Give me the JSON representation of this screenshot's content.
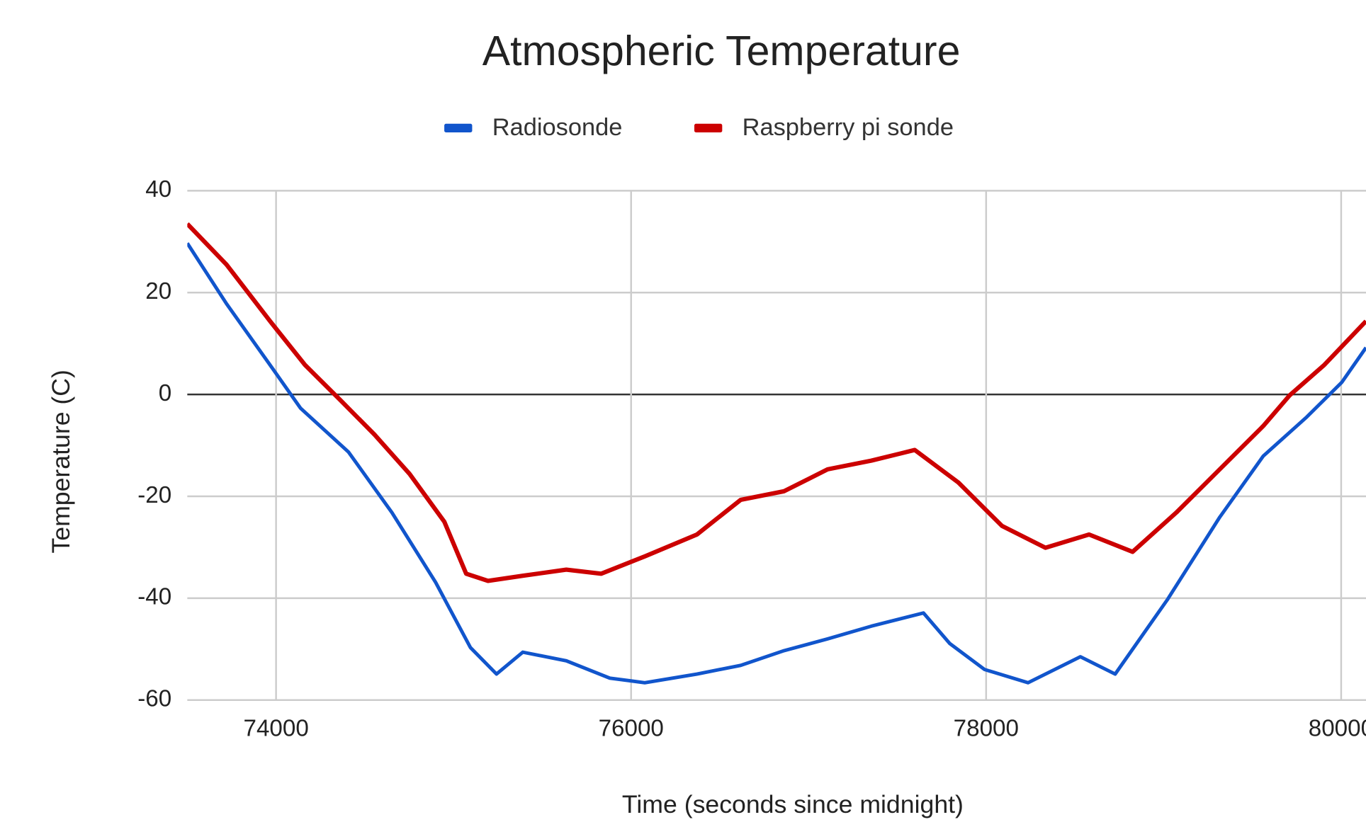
{
  "chart_data": {
    "type": "line",
    "title": "Atmospheric Temperature",
    "xlabel": "Time (seconds since midnight)",
    "ylabel": "Temperature (C)",
    "xlim": [
      73500,
      80140
    ],
    "ylim": [
      -60,
      40
    ],
    "xticks": [
      74000,
      76000,
      78000,
      80000
    ],
    "yticks": [
      -60,
      -40,
      -20,
      0,
      20,
      40
    ],
    "grid": true,
    "legend": "top",
    "series": [
      {
        "name": "Radiosonde",
        "color": "#1155cc",
        "x": [
          73500,
          73721,
          73966,
          74138,
          74408,
          74653,
          74899,
          75095,
          75242,
          75390,
          75635,
          75880,
          76077,
          76371,
          76617,
          76862,
          77107,
          77353,
          77647,
          77795,
          77991,
          78236,
          78531,
          78727,
          79021,
          79316,
          79561,
          79807,
          80004,
          80140
        ],
        "values": [
          29.7,
          17.8,
          5.8,
          -2.7,
          -11.3,
          -23.2,
          -36.9,
          -49.7,
          -54.9,
          -50.6,
          -52.3,
          -55.7,
          -56.6,
          -54.9,
          -53.2,
          -50.3,
          -48,
          -45.5,
          -42.9,
          -48.9,
          -54,
          -56.6,
          -51.5,
          -54.9,
          -40.3,
          -24.1,
          -12.1,
          -4.4,
          2.4,
          9.2
        ]
      },
      {
        "name": "Raspberry pi sonde",
        "color": "#cc0000",
        "x": [
          73500,
          73721,
          73966,
          74163,
          74359,
          74555,
          74752,
          74948,
          75071,
          75194,
          75390,
          75635,
          75831,
          76077,
          76371,
          76617,
          76862,
          77107,
          77353,
          77598,
          77844,
          78089,
          78334,
          78580,
          78825,
          79071,
          79316,
          79561,
          79709,
          79905,
          80140
        ],
        "values": [
          33.5,
          25.5,
          14.4,
          5.8,
          -1,
          -7.9,
          -15.6,
          -25,
          -35.2,
          -36.6,
          -35.6,
          -34.4,
          -35.2,
          -31.8,
          -27.5,
          -20.7,
          -19,
          -14.7,
          -13,
          -10.9,
          -17.3,
          -25.8,
          -30.1,
          -27.5,
          -30.9,
          -23.2,
          -14.7,
          -6.2,
          -0.2,
          5.8,
          14.4
        ]
      }
    ]
  }
}
